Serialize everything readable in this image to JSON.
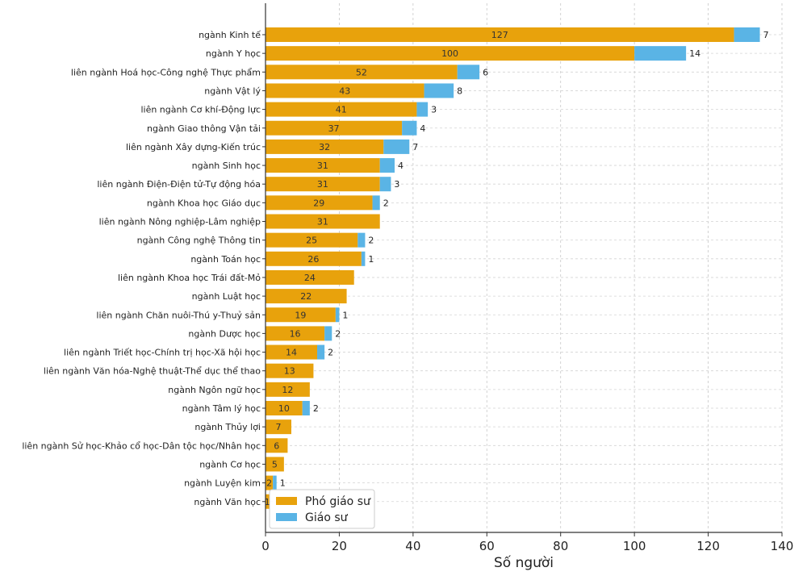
{
  "chart_data": {
    "type": "bar",
    "orientation": "horizontal",
    "stacked": true,
    "title": "",
    "xlabel": "Số người",
    "ylabel": "",
    "xlim": [
      0,
      140
    ],
    "xticks": [
      0,
      20,
      40,
      60,
      80,
      100,
      120,
      140
    ],
    "grid": true,
    "legend_position": "bottom-left",
    "categories": [
      "ngành Kinh tế",
      "ngành Y học",
      "liên ngành Hoá học-Công nghệ Thực phẩm",
      "ngành Vật lý",
      "liên ngành Cơ khí-Động lực",
      "ngành Giao thông Vận tải",
      "liên ngành Xây dựng-Kiến trúc",
      "ngành Sinh học",
      "liên ngành Điện-Điện tử-Tự động hóa",
      "ngành Khoa học Giáo dục",
      "liên ngành Nông nghiệp-Lâm nghiệp",
      "ngành Công nghệ Thông tin",
      "ngành Toán học",
      "liên ngành Khoa học Trái đất-Mỏ",
      "ngành Luật học",
      "liên ngành Chăn nuôi-Thú y-Thuỷ sản",
      "ngành Dược học",
      "liên ngành Triết học-Chính trị học-Xã hội học",
      "liên ngành Văn hóa-Nghệ thuật-Thể dục thể thao",
      "ngành Ngôn ngữ học",
      "ngành Tâm lý học",
      "ngành Thủy lợi",
      "liên ngành Sử học-Khảo cổ học-Dân tộc học/Nhân học",
      "ngành Cơ học",
      "ngành Luyện kim",
      "ngành Văn học"
    ],
    "series": [
      {
        "name": "Phó giáo sư",
        "color": "#E8A20C",
        "values": [
          127,
          100,
          52,
          43,
          41,
          37,
          32,
          31,
          31,
          29,
          31,
          25,
          26,
          24,
          22,
          19,
          16,
          14,
          13,
          12,
          10,
          7,
          6,
          5,
          2,
          1
        ]
      },
      {
        "name": "Giáo sư",
        "color": "#5AB4E5",
        "values": [
          7,
          14,
          6,
          8,
          3,
          4,
          7,
          4,
          3,
          2,
          0,
          2,
          1,
          0,
          0,
          1,
          2,
          2,
          0,
          0,
          2,
          0,
          0,
          0,
          1,
          0
        ]
      }
    ]
  }
}
